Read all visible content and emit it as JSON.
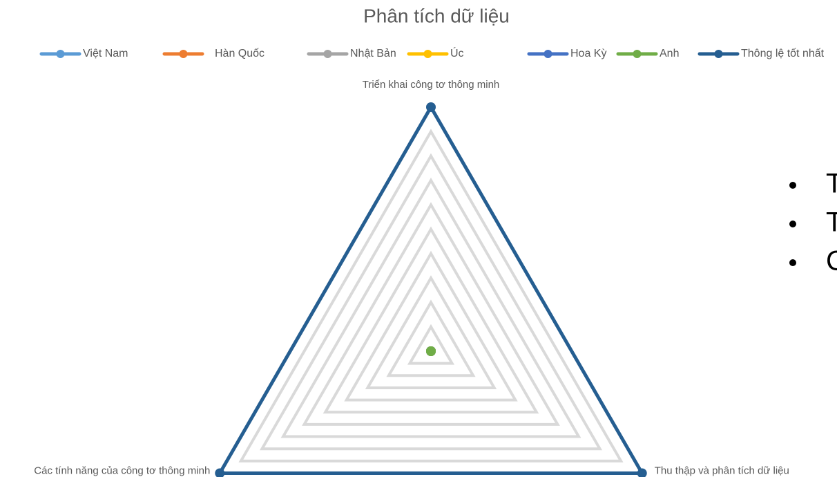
{
  "chart_data": {
    "type": "radar",
    "title": "Phân tích dữ liệu",
    "categories": [
      "Triển khai công tơ thông minh",
      "Thu thập và phân tích dữ liệu",
      "Các tính năng của công tơ thông minh"
    ],
    "rlim": [
      0,
      10
    ],
    "rticks": [
      1,
      2,
      3,
      4,
      5,
      6,
      7,
      8,
      9,
      10
    ],
    "grid": true,
    "legend": "top",
    "series": [
      {
        "name": "Việt Nam",
        "color": "#5b9bd5",
        "values": [
          0,
          0,
          0
        ]
      },
      {
        "name": "Hàn Quốc",
        "color": "#ed7d31",
        "values": [
          0,
          0,
          0
        ]
      },
      {
        "name": "Nhật Bản",
        "color": "#a5a5a5",
        "values": [
          0,
          0,
          0
        ]
      },
      {
        "name": "Úc",
        "color": "#ffc000",
        "values": [
          0,
          0,
          0
        ]
      },
      {
        "name": "Hoa Kỳ",
        "color": "#4472c4",
        "values": [
          0,
          0,
          0
        ]
      },
      {
        "name": "Anh",
        "color": "#70ad47",
        "values": [
          0,
          0,
          0
        ]
      },
      {
        "name": "Thông lệ tốt nhất",
        "color": "#255e91",
        "values": [
          10,
          10,
          10
        ]
      }
    ]
  },
  "side_bullets": [
    "T",
    "T",
    "C"
  ]
}
